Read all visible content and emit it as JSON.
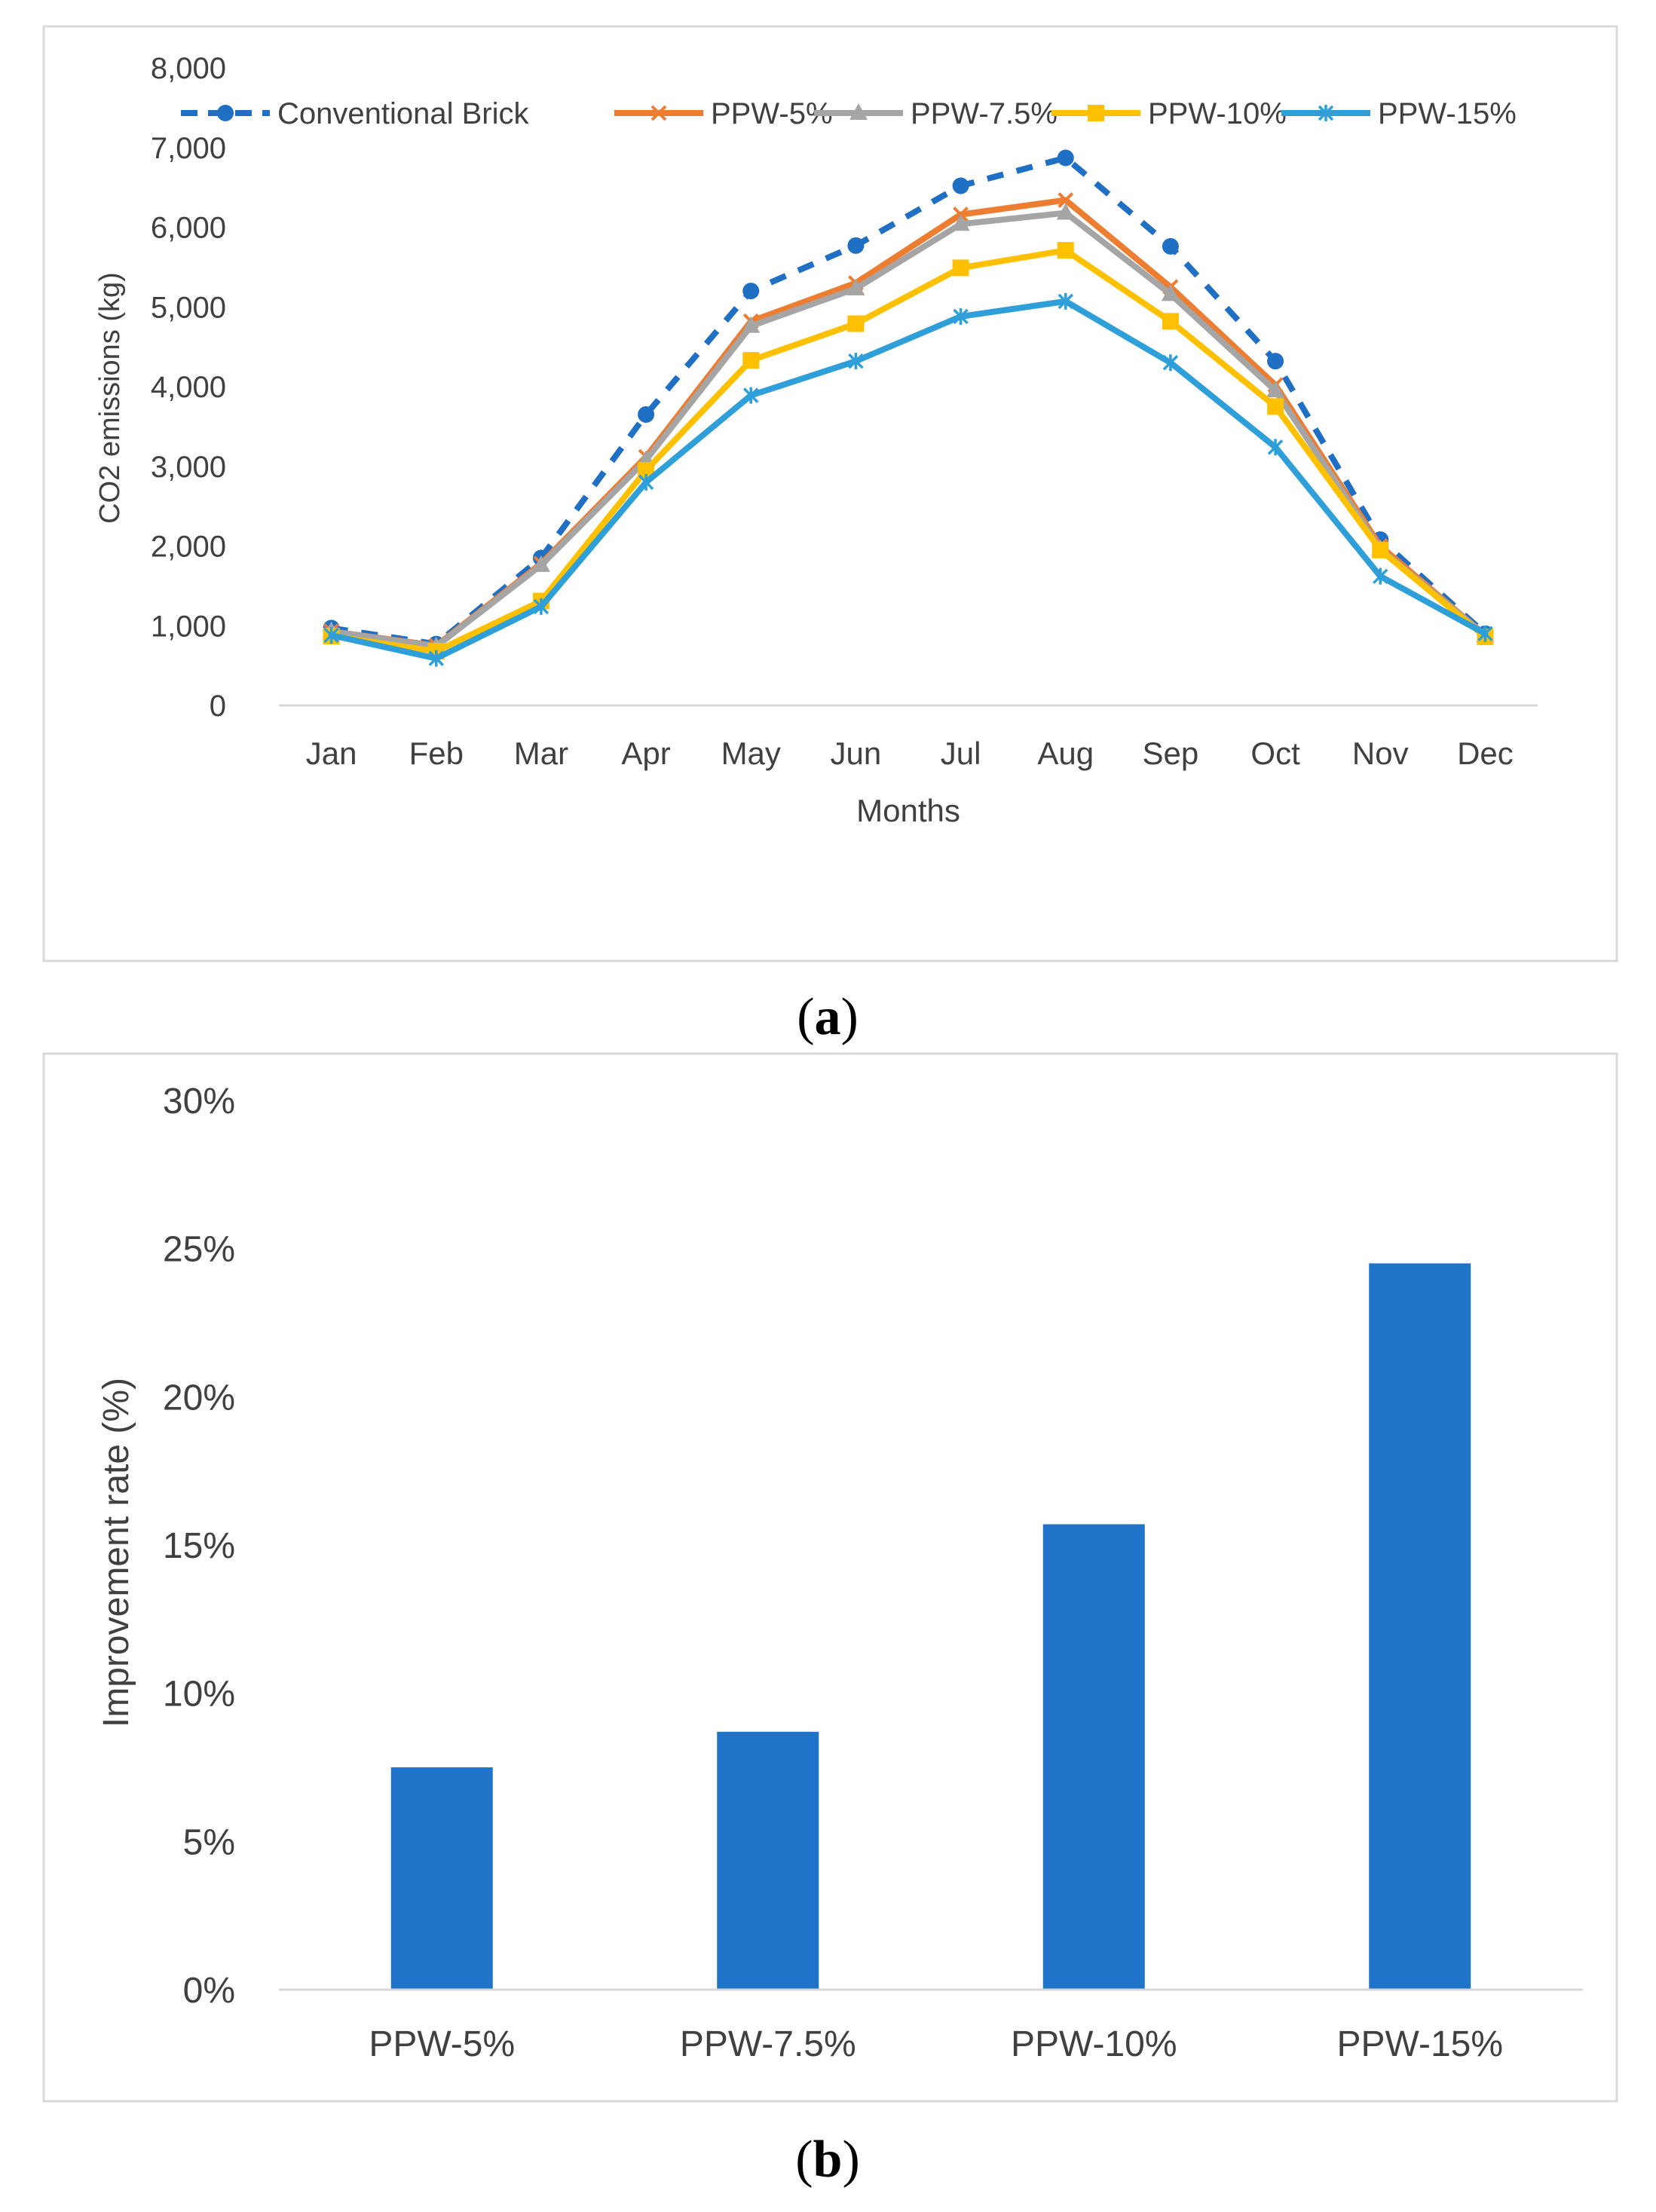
{
  "figure": {
    "panel_a_label": "a",
    "panel_b_label": "b"
  },
  "chart_data": [
    {
      "type": "line",
      "title": "",
      "xlabel": "Months",
      "ylabel": "CO2 emissions (kg)",
      "ylim": [
        0,
        8000
      ],
      "yticks": [
        0,
        1000,
        2000,
        3000,
        4000,
        5000,
        6000,
        7000,
        8000
      ],
      "ytick_labels": [
        "0",
        "1,000",
        "2,000",
        "3,000",
        "4,000",
        "5,000",
        "6,000",
        "7,000",
        "8,000"
      ],
      "grid": false,
      "legend_position": "top",
      "categories": [
        "Jan",
        "Feb",
        "Mar",
        "Apr",
        "May",
        "Jun",
        "Jul",
        "Aug",
        "Sep",
        "Oct",
        "Nov",
        "Dec"
      ],
      "series": [
        {
          "name": "Conventional Brick",
          "color": "#1f6fc5",
          "marker": "circle",
          "dashed": true,
          "values": [
            970,
            770,
            1850,
            3650,
            5200,
            5770,
            6520,
            6870,
            5760,
            4320,
            2080,
            900
          ]
        },
        {
          "name": "PPW-5%",
          "color": "#ed7d31",
          "marker": "x",
          "dashed": false,
          "values": [
            930,
            750,
            1780,
            3120,
            4820,
            5300,
            6160,
            6340,
            5250,
            4020,
            2000,
            880
          ]
        },
        {
          "name": "PPW-7.5%",
          "color": "#a5a5a5",
          "marker": "triangle",
          "dashed": false,
          "values": [
            930,
            740,
            1760,
            3080,
            4760,
            5230,
            6040,
            6180,
            5160,
            3950,
            1960,
            880
          ]
        },
        {
          "name": "PPW-10%",
          "color": "#ffc000",
          "marker": "square",
          "dashed": false,
          "values": [
            870,
            680,
            1310,
            2950,
            4330,
            4790,
            5490,
            5710,
            4820,
            3750,
            1950,
            860
          ]
        },
        {
          "name": "PPW-15%",
          "color": "#2e9fd8",
          "marker": "star",
          "dashed": false,
          "values": [
            880,
            590,
            1240,
            2800,
            3890,
            4320,
            4880,
            5070,
            4300,
            3240,
            1620,
            900
          ]
        }
      ]
    },
    {
      "type": "bar",
      "title": "",
      "xlabel": "",
      "ylabel": "Improvement rate (%)",
      "ylim": [
        0,
        30
      ],
      "yticks": [
        0,
        5,
        10,
        15,
        20,
        25,
        30
      ],
      "ytick_labels": [
        "0%",
        "5%",
        "10%",
        "15%",
        "20%",
        "25%",
        "30%"
      ],
      "grid": false,
      "categories": [
        "PPW-5%",
        "PPW-7.5%",
        "PPW-10%",
        "PPW-15%"
      ],
      "values": [
        7.5,
        8.7,
        15.7,
        24.5
      ],
      "bar_color": "#1f73c9"
    }
  ]
}
